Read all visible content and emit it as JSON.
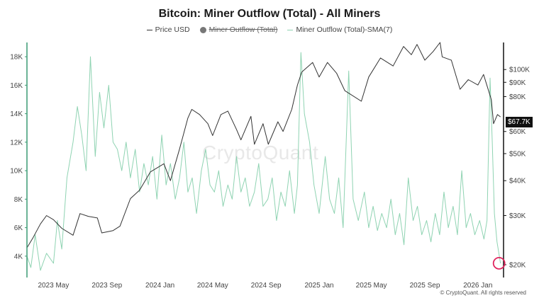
{
  "title": "Bitcoin: Miner Outflow (Total) - All Miners",
  "legend": {
    "price": "Price USD",
    "outflow": "Miner Outflow (Total)",
    "sma": "Miner Outflow (Total)-SMA(7)"
  },
  "watermark": "CryptoQuant",
  "copyright": "© CryptoQuant. All rights reserved",
  "price_tag": "$67.7K",
  "colors": {
    "price": "#333333",
    "sma": "#8fd3b2",
    "axis_left": "#3a9a73",
    "marker": "#e0245e"
  },
  "chart_data": {
    "type": "line",
    "x_ticks": [
      "2023 May",
      "2023 Sep",
      "2024 Jan",
      "2024 May",
      "2024 Sep",
      "2025 Jan",
      "2025 May",
      "2025 Sep",
      "2026 Jan"
    ],
    "y_left": {
      "ticks": [
        "4K",
        "6K",
        "8K",
        "10K",
        "12K",
        "14K",
        "16K",
        "18K"
      ],
      "range": [
        2500,
        19000
      ]
    },
    "y_right": {
      "scale": "log",
      "ticks": [
        "$20K",
        "$30K",
        "$40K",
        "$50K",
        "$60K",
        "$80K",
        "$90K",
        "$100K"
      ],
      "range": [
        18000,
        125000
      ]
    },
    "series": [
      {
        "name": "Price USD",
        "axis": "right",
        "points": [
          [
            "2023-03-01",
            23000
          ],
          [
            "2023-03-15",
            25000
          ],
          [
            "2023-04-01",
            28000
          ],
          [
            "2023-04-15",
            30000
          ],
          [
            "2023-05-01",
            29000
          ],
          [
            "2023-05-20",
            27000
          ],
          [
            "2023-06-15",
            25500
          ],
          [
            "2023-07-01",
            30500
          ],
          [
            "2023-07-20",
            29800
          ],
          [
            "2023-08-10",
            29400
          ],
          [
            "2023-08-20",
            26000
          ],
          [
            "2023-09-15",
            26500
          ],
          [
            "2023-10-01",
            27500
          ],
          [
            "2023-10-25",
            34500
          ],
          [
            "2023-11-15",
            37000
          ],
          [
            "2023-12-10",
            43000
          ],
          [
            "2024-01-10",
            46000
          ],
          [
            "2024-01-25",
            40000
          ],
          [
            "2024-02-15",
            52000
          ],
          [
            "2024-03-05",
            67000
          ],
          [
            "2024-03-14",
            72000
          ],
          [
            "2024-04-01",
            69000
          ],
          [
            "2024-04-20",
            64000
          ],
          [
            "2024-05-01",
            58000
          ],
          [
            "2024-05-20",
            69000
          ],
          [
            "2024-06-05",
            71000
          ],
          [
            "2024-06-25",
            61000
          ],
          [
            "2024-07-05",
            56000
          ],
          [
            "2024-07-28",
            68000
          ],
          [
            "2024-08-05",
            54000
          ],
          [
            "2024-08-25",
            64000
          ],
          [
            "2024-09-06",
            54000
          ],
          [
            "2024-09-28",
            65000
          ],
          [
            "2024-10-10",
            60000
          ],
          [
            "2024-10-30",
            72000
          ],
          [
            "2024-11-12",
            88000
          ],
          [
            "2024-11-22",
            98000
          ],
          [
            "2024-12-17",
            106000
          ],
          [
            "2025-01-01",
            94000
          ],
          [
            "2025-01-20",
            106000
          ],
          [
            "2025-02-10",
            97000
          ],
          [
            "2025-03-01",
            84000
          ],
          [
            "2025-04-08",
            77000
          ],
          [
            "2025-04-25",
            94000
          ],
          [
            "2025-05-22",
            110000
          ],
          [
            "2025-06-20",
            103000
          ],
          [
            "2025-07-14",
            121000
          ],
          [
            "2025-08-01",
            113000
          ],
          [
            "2025-08-14",
            123000
          ],
          [
            "2025-09-01",
            108000
          ],
          [
            "2025-09-20",
            116000
          ],
          [
            "2025-10-06",
            125000
          ],
          [
            "2025-10-11",
            111000
          ],
          [
            "2025-11-01",
            108000
          ],
          [
            "2025-11-21",
            85000
          ],
          [
            "2025-12-10",
            92000
          ],
          [
            "2026-01-01",
            88000
          ],
          [
            "2026-01-14",
            96000
          ],
          [
            "2026-02-01",
            78000
          ],
          [
            "2026-02-06",
            64000
          ],
          [
            "2026-02-15",
            69000
          ],
          [
            "2026-02-22",
            67700
          ]
        ]
      },
      {
        "name": "Miner Outflow (Total)-SMA(7)",
        "axis": "left",
        "points": [
          [
            "2023-03-01",
            4000
          ],
          [
            "2023-03-10",
            3200
          ],
          [
            "2023-03-20",
            5500
          ],
          [
            "2023-04-01",
            3000
          ],
          [
            "2023-04-15",
            4200
          ],
          [
            "2023-05-01",
            3500
          ],
          [
            "2023-05-10",
            6500
          ],
          [
            "2023-05-20",
            4500
          ],
          [
            "2023-06-01",
            9500
          ],
          [
            "2023-06-15",
            12000
          ],
          [
            "2023-06-25",
            14500
          ],
          [
            "2023-07-05",
            12500
          ],
          [
            "2023-07-15",
            10000
          ],
          [
            "2023-07-25",
            18000
          ],
          [
            "2023-08-05",
            11000
          ],
          [
            "2023-08-15",
            15500
          ],
          [
            "2023-08-25",
            13000
          ],
          [
            "2023-09-05",
            16000
          ],
          [
            "2023-09-15",
            12000
          ],
          [
            "2023-09-25",
            11500
          ],
          [
            "2023-10-05",
            10000
          ],
          [
            "2023-10-15",
            12000
          ],
          [
            "2023-10-25",
            9500
          ],
          [
            "2023-11-05",
            11500
          ],
          [
            "2023-11-15",
            8500
          ],
          [
            "2023-11-25",
            10500
          ],
          [
            "2023-12-05",
            9000
          ],
          [
            "2023-12-15",
            11000
          ],
          [
            "2023-12-25",
            8000
          ],
          [
            "2024-01-05",
            12500
          ],
          [
            "2024-01-15",
            9000
          ],
          [
            "2024-01-25",
            10500
          ],
          [
            "2024-02-05",
            8000
          ],
          [
            "2024-02-15",
            9500
          ],
          [
            "2024-02-25",
            12000
          ],
          [
            "2024-03-05",
            8500
          ],
          [
            "2024-03-15",
            9500
          ],
          [
            "2024-03-25",
            7000
          ],
          [
            "2024-04-05",
            10000
          ],
          [
            "2024-04-15",
            11500
          ],
          [
            "2024-04-25",
            9000
          ],
          [
            "2024-05-05",
            8500
          ],
          [
            "2024-05-15",
            10000
          ],
          [
            "2024-05-25",
            7500
          ],
          [
            "2024-06-05",
            9000
          ],
          [
            "2024-06-15",
            8000
          ],
          [
            "2024-06-25",
            11000
          ],
          [
            "2024-07-05",
            8500
          ],
          [
            "2024-07-15",
            9500
          ],
          [
            "2024-07-25",
            7500
          ],
          [
            "2024-08-05",
            8500
          ],
          [
            "2024-08-15",
            10500
          ],
          [
            "2024-08-25",
            7500
          ],
          [
            "2024-09-05",
            8000
          ],
          [
            "2024-09-15",
            9500
          ],
          [
            "2024-09-25",
            6500
          ],
          [
            "2024-10-05",
            8500
          ],
          [
            "2024-10-15",
            7500
          ],
          [
            "2024-10-25",
            10000
          ],
          [
            "2024-11-05",
            7000
          ],
          [
            "2024-11-12",
            9000
          ],
          [
            "2024-11-20",
            18300
          ],
          [
            "2024-11-28",
            14000
          ],
          [
            "2024-12-10",
            12000
          ],
          [
            "2024-12-20",
            9000
          ],
          [
            "2025-01-01",
            7000
          ],
          [
            "2025-01-15",
            11000
          ],
          [
            "2025-01-25",
            8000
          ],
          [
            "2025-02-05",
            7000
          ],
          [
            "2025-02-15",
            9500
          ],
          [
            "2025-02-25",
            6000
          ],
          [
            "2025-03-10",
            17000
          ],
          [
            "2025-03-20",
            8000
          ],
          [
            "2025-04-01",
            6500
          ],
          [
            "2025-04-15",
            8500
          ],
          [
            "2025-04-25",
            6000
          ],
          [
            "2025-05-05",
            7500
          ],
          [
            "2025-05-15",
            5800
          ],
          [
            "2025-05-25",
            7000
          ],
          [
            "2025-06-05",
            6000
          ],
          [
            "2025-06-15",
            8000
          ],
          [
            "2025-06-25",
            5500
          ],
          [
            "2025-07-05",
            7000
          ],
          [
            "2025-07-15",
            4800
          ],
          [
            "2025-07-25",
            9500
          ],
          [
            "2025-08-05",
            6500
          ],
          [
            "2025-08-15",
            7500
          ],
          [
            "2025-08-25",
            5500
          ],
          [
            "2025-09-05",
            6500
          ],
          [
            "2025-09-15",
            5000
          ],
          [
            "2025-09-25",
            7000
          ],
          [
            "2025-10-05",
            5500
          ],
          [
            "2025-10-15",
            8500
          ],
          [
            "2025-10-25",
            6000
          ],
          [
            "2025-11-05",
            7500
          ],
          [
            "2025-11-15",
            5500
          ],
          [
            "2025-11-25",
            10000
          ],
          [
            "2025-12-05",
            6000
          ],
          [
            "2025-12-15",
            7000
          ],
          [
            "2025-12-25",
            5500
          ],
          [
            "2026-01-05",
            6500
          ],
          [
            "2026-01-15",
            5200
          ],
          [
            "2026-01-22",
            6500
          ],
          [
            "2026-01-29",
            16500
          ],
          [
            "2026-02-03",
            12000
          ],
          [
            "2026-02-08",
            7000
          ],
          [
            "2026-02-14",
            5000
          ],
          [
            "2026-02-22",
            3500
          ]
        ]
      }
    ],
    "highlight": {
      "date": "2026-02-22",
      "value": 3500,
      "axis": "left"
    }
  }
}
